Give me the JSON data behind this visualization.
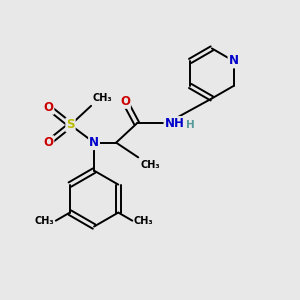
{
  "background_color": "#e8e8e8",
  "figsize": [
    3.0,
    3.0
  ],
  "dpi": 100,
  "atom_colors": {
    "C": "#000000",
    "N": "#0000cc",
    "O": "#cc0000",
    "S": "#bbbb00",
    "H": "#559999"
  },
  "bond_color": "#000000",
  "bond_width": 1.4,
  "font_size_atom": 8.5,
  "font_size_small": 7.0,
  "xlim": [
    0,
    10
  ],
  "ylim": [
    0,
    10
  ]
}
